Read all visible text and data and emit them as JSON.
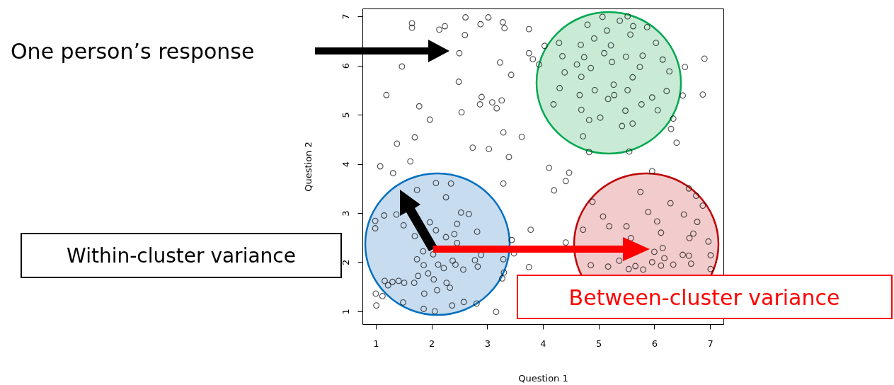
{
  "chart_data": {
    "type": "scatter",
    "xlabel": "Question 1",
    "ylabel": "Question 2",
    "color": "#000000",
    "marker": "circle",
    "xlim": [
      0.76,
      7.24
    ],
    "ylim": [
      0.74,
      7.16
    ],
    "xticks": [
      1,
      2,
      3,
      4,
      5,
      6,
      7
    ],
    "yticks": [
      1,
      2,
      3,
      4,
      5,
      6,
      7
    ],
    "annotations": [
      "One person’s response",
      "Within-cluster variance",
      "Between-cluster variance"
    ],
    "x": [
      1.65,
      1.65,
      2.14,
      2.24,
      2.61,
      2.88,
      3.02,
      3.28,
      3.31,
      3.75,
      2.6,
      2.5,
      3.75,
      3.82,
      3.23,
      1.47,
      3.43,
      2.49,
      1.19,
      2.9,
      2.87,
      3.09,
      3.26,
      3.17,
      1.78,
      2.54,
      1.97,
      3.29,
      3.62,
      1.7,
      1.38,
      2.74,
      3.03,
      3.39,
      1.62,
      1.08,
      4.03,
      3.93,
      5.07,
      5.52,
      4.8,
      5.38,
      5.62,
      5.87,
      5.15,
      5.57,
      4.29,
      4.92,
      6.03,
      4.68,
      5.22,
      4.35,
      4.74,
      5.1,
      5.49,
      5.79,
      6.15,
      6.9,
      4.61,
      5.24,
      5.74,
      6.55,
      4.86,
      4.39,
      6.27,
      4.69,
      5.61,
      5.27,
      4.3,
      4.93,
      5.52,
      6.22,
      6.51,
      6.87,
      4.19,
      4.66,
      5.28,
      5.17,
      5.77,
      5.96,
      4.69,
      5.48,
      6.06,
      5.03,
      4.83,
      5.42,
      5.61,
      6.34,
      6.3,
      6.4,
      4.72,
      4.83,
      5.55,
      4.11,
      4.47,
      4.41,
      4.2,
      5.96,
      3.78,
      3.29,
      1.31,
      2.08,
      2.35,
      1.74,
      2.26,
      2.53,
      2.67,
      1.37,
      1.15,
      0.99,
      0.99,
      1.5,
      1.97,
      2.46,
      2.82,
      2.41,
      2.08,
      1.7,
      2.26,
      3.44,
      1.85,
      2.03,
      2.46,
      2.89,
      3.48,
      3.29,
      2.78,
      2.38,
      1.74,
      1.86,
      2.12,
      2.43,
      2.57,
      2.83,
      2.22,
      1.94,
      1.76,
      1.41,
      1.22,
      1.16,
      1.3,
      1.51,
      1.69,
      2.04,
      2.27,
      2.33,
      2.1,
      1.87,
      1.12,
      1.0,
      1.01,
      1.49,
      1.86,
      2.06,
      2.37,
      2.58,
      2.81,
      3.16,
      3.75,
      3.27,
      3.3,
      4.89,
      6.29,
      5.75,
      6.62,
      6.75,
      6.87,
      5.89,
      5.08,
      6.53,
      6.77,
      6.05,
      5.19,
      5.5,
      4.72,
      6.12,
      6.7,
      5.58,
      6.63,
      6.97,
      4.41,
      6.15,
      6.0,
      6.51,
      6.62,
      7.01,
      6.18,
      5.37,
      5.96,
      6.66,
      6.34,
      5.66,
      6.12,
      4.86,
      5.17,
      5.54,
      5.8,
      7.01
    ],
    "values": [
      6.86,
      6.77,
      6.73,
      6.8,
      6.98,
      6.84,
      6.98,
      6.88,
      6.76,
      6.74,
      6.62,
      6.25,
      6.25,
      6.13,
      6.06,
      5.98,
      5.81,
      5.67,
      5.4,
      5.36,
      5.21,
      5.25,
      5.29,
      5.13,
      5.17,
      5.05,
      4.9,
      4.64,
      4.55,
      4.54,
      4.41,
      4.33,
      4.3,
      4.14,
      4.05,
      3.95,
      6.4,
      6.02,
      6.99,
      7.0,
      6.83,
      6.91,
      6.8,
      6.78,
      6.71,
      6.63,
      6.46,
      6.55,
      6.46,
      6.42,
      6.41,
      6.19,
      6.17,
      6.25,
      6.18,
      6.2,
      6.12,
      6.14,
      6.02,
      6.07,
      5.97,
      5.97,
      5.95,
      5.86,
      5.88,
      5.77,
      5.76,
      5.61,
      5.54,
      5.5,
      5.5,
      5.48,
      5.39,
      5.41,
      5.21,
      5.4,
      5.4,
      5.32,
      5.21,
      5.35,
      5.1,
      5.08,
      5.09,
      4.94,
      4.89,
      4.77,
      4.82,
      4.92,
      4.71,
      4.43,
      4.56,
      4.24,
      4.25,
      3.92,
      3.82,
      3.65,
      3.46,
      3.85,
      2.66,
      3.6,
      3.81,
      3.61,
      3.6,
      3.47,
      3.32,
      3.01,
      2.98,
      2.97,
      2.95,
      2.84,
      2.69,
      2.75,
      2.81,
      2.78,
      2.62,
      2.57,
      2.65,
      2.53,
      2.51,
      2.45,
      2.22,
      2.16,
      2.39,
      2.15,
      2.18,
      2.06,
      2.04,
      2.03,
      2.06,
      1.94,
      1.95,
      1.95,
      1.85,
      1.91,
      1.88,
      1.77,
      1.72,
      1.62,
      1.53,
      1.62,
      1.6,
      1.58,
      1.58,
      1.65,
      1.58,
      1.48,
      1.43,
      1.36,
      1.31,
      1.36,
      1.12,
      1.18,
      1.05,
      1.0,
      1.12,
      1.19,
      1.16,
      0.99,
      1.9,
      1.67,
      1.79,
      3.23,
      3.2,
      3.43,
      3.5,
      3.35,
      3.15,
      3.02,
      2.93,
      2.97,
      2.82,
      2.83,
      2.73,
      2.73,
      2.66,
      2.6,
      2.58,
      2.49,
      2.49,
      2.42,
      2.4,
      2.29,
      2.21,
      2.15,
      2.13,
      2.14,
      2.08,
      2.03,
      2.0,
      1.97,
      1.95,
      1.92,
      1.93,
      1.94,
      1.91,
      1.86,
      1.85,
      1.86
    ]
  }
}
